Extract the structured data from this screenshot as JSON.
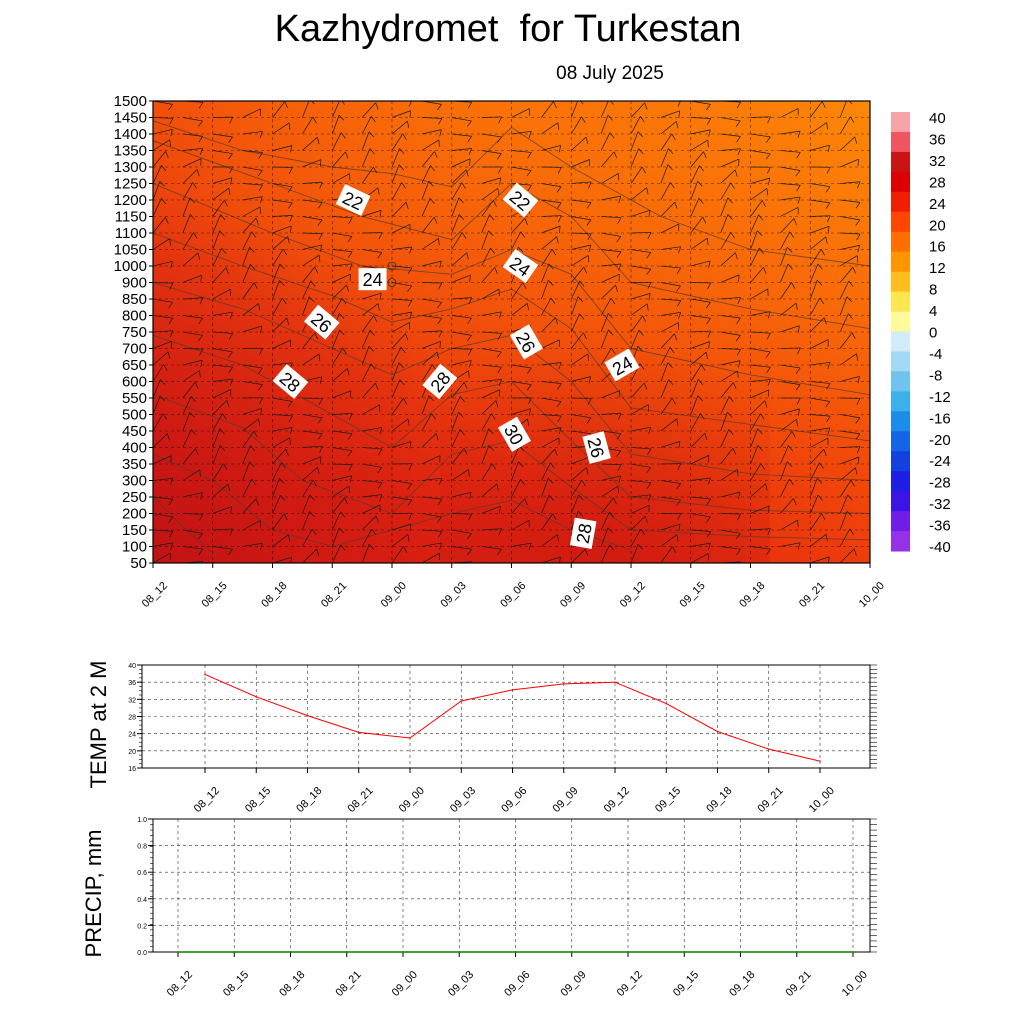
{
  "header": {
    "title": "Kazhydromet  for Turkestan",
    "date": "08 July 2025"
  },
  "colors": {
    "temp_line": "#ff0000",
    "precip_line": "#008000",
    "contour_line": "#5a3a2a"
  },
  "chart_data": [
    {
      "type": "heatmap",
      "name": "vertical-cross-section",
      "time_labels": [
        "08_12",
        "08_15",
        "08_18",
        "08_21",
        "09_00",
        "09_03",
        "09_06",
        "09_09",
        "09_12",
        "09_15",
        "09_18",
        "09_21",
        "10_00"
      ],
      "y_ticks": [
        50,
        100,
        150,
        200,
        250,
        300,
        350,
        400,
        450,
        500,
        550,
        600,
        650,
        700,
        750,
        800,
        850,
        900,
        1000,
        1050,
        1100,
        1150,
        1200,
        1250,
        1300,
        1350,
        1400,
        1450,
        1500
      ],
      "colorbar": {
        "labels": [
          "40",
          "36",
          "32",
          "28",
          "24",
          "20",
          "16",
          "12",
          "8",
          "4",
          "0",
          "-4",
          "-8",
          "-12",
          "-16",
          "-20",
          "-24",
          "-28",
          "-32",
          "-36",
          "-40"
        ],
        "colors": [
          "#f5a3a8",
          "#ee5560",
          "#c81414",
          "#dc0000",
          "#f01e00",
          "#ff4600",
          "#ff6e00",
          "#ff9600",
          "#ffbe1e",
          "#ffe650",
          "#fffa9c",
          "#d2ecfa",
          "#a0d8f5",
          "#6ec4ee",
          "#3cb0ea",
          "#1a8cea",
          "#1464e6",
          "#1440e0",
          "#1e1ee6",
          "#3c14e6",
          "#6e1ee8",
          "#9632e6"
        ]
      },
      "contour_labels": [
        {
          "text": "22",
          "time": 6.7,
          "y": 1200,
          "angle": 25
        },
        {
          "text": "22",
          "time": 12.3,
          "y": 1200,
          "angle": 40
        },
        {
          "text": "24",
          "time": 7.35,
          "y": 920,
          "angle": 0
        },
        {
          "text": "24",
          "time": 12.3,
          "y": 1000,
          "angle": 35
        },
        {
          "text": "24",
          "time": 15.7,
          "y": 650,
          "angle": -30
        },
        {
          "text": "26",
          "time": 5.65,
          "y": 780,
          "angle": 40
        },
        {
          "text": "26",
          "time": 12.5,
          "y": 720,
          "angle": 60
        },
        {
          "text": "26",
          "time": 14.85,
          "y": 400,
          "angle": 75
        },
        {
          "text": "28",
          "time": 4.6,
          "y": 600,
          "angle": 40
        },
        {
          "text": "28",
          "time": 9.6,
          "y": 600,
          "angle": -50
        },
        {
          "text": "28",
          "time": 14.4,
          "y": 140,
          "angle": -80
        },
        {
          "text": "30",
          "time": 12.1,
          "y": 440,
          "angle": 60
        }
      ]
    },
    {
      "type": "line",
      "name": "temperature-2m",
      "ylabel": "TEMP at 2 M",
      "categories": [
        "08_12",
        "08_15",
        "08_18",
        "08_21",
        "09_00",
        "09_03",
        "09_06",
        "09_09",
        "09_12",
        "09_15",
        "09_18",
        "09_21",
        "10_00"
      ],
      "y_ticks": [
        16,
        20,
        24,
        28,
        32,
        36,
        40
      ],
      "ylim": [
        16,
        40
      ],
      "series": [
        {
          "values": [
            37.8,
            32.6,
            28.2,
            24.3,
            23.0,
            31.6,
            34.2,
            35.6,
            36.0,
            31.0,
            24.5,
            20.4,
            17.6
          ]
        }
      ]
    },
    {
      "type": "line",
      "name": "precipitation",
      "ylabel": "PRECIP, mm",
      "categories": [
        "08_12",
        "08_15",
        "08_18",
        "08_21",
        "09_00",
        "09_03",
        "09_06",
        "09_09",
        "09_12",
        "09_15",
        "09_18",
        "09_21",
        "10_00"
      ],
      "y_ticks": [
        "0.0",
        "0.2",
        "0.4",
        "0.6",
        "0.8",
        "1.0"
      ],
      "ylim": [
        0,
        1
      ],
      "series": [
        {
          "values": [
            0,
            0,
            0,
            0,
            0,
            0,
            0,
            0,
            0,
            0,
            0,
            0,
            0
          ]
        }
      ]
    }
  ]
}
